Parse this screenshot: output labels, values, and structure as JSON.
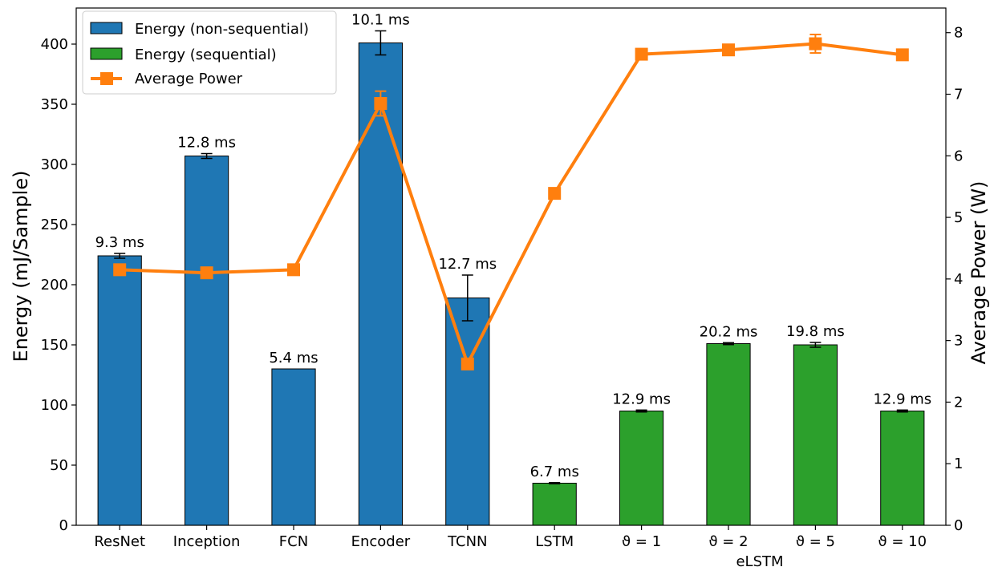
{
  "chart_data": {
    "type": "bar",
    "categories": [
      "ResNet",
      "Inception",
      "FCN",
      "Encoder",
      "TCNN",
      "LSTM",
      "ϑ = 1",
      "ϑ = 2",
      "ϑ = 5",
      "ϑ = 10"
    ],
    "category_group_label": "eLSTM",
    "series": [
      {
        "name": "Energy (non-sequential)",
        "kind": "bar",
        "axis": "left",
        "color": "#1f77b4",
        "values": [
          224,
          307,
          130,
          401,
          189,
          null,
          null,
          null,
          null,
          null
        ],
        "errors": [
          2,
          2,
          0,
          10,
          19,
          null,
          null,
          null,
          null,
          null
        ]
      },
      {
        "name": "Energy (sequential)",
        "kind": "bar",
        "axis": "left",
        "color": "#2ca02c",
        "values": [
          null,
          null,
          null,
          null,
          null,
          35,
          95,
          151,
          150,
          95
        ],
        "errors": [
          null,
          null,
          null,
          null,
          null,
          0.5,
          0.8,
          0.8,
          2,
          0.8
        ]
      },
      {
        "name": "Average Power",
        "kind": "line",
        "axis": "right",
        "color": "#ff7f0e",
        "values": [
          4.15,
          4.1,
          4.15,
          6.85,
          2.62,
          5.39,
          7.65,
          7.72,
          7.82,
          7.64
        ],
        "errors": [
          0,
          0,
          0,
          0.2,
          0,
          0,
          0,
          0,
          0.15,
          0
        ]
      }
    ],
    "bar_labels": [
      "9.3 ms",
      "12.8 ms",
      "5.4 ms",
      "10.1 ms",
      "12.7 ms",
      "6.7 ms",
      "12.9 ms",
      "20.2 ms",
      "19.8 ms",
      "12.9 ms"
    ],
    "ylabel": "Energy (mJ/Sample)",
    "y2label": "Average Power (W)",
    "ylim": [
      0,
      430
    ],
    "y2lim": [
      0,
      8.4
    ],
    "yticks": [
      0,
      50,
      100,
      150,
      200,
      250,
      300,
      350,
      400
    ],
    "y2ticks": [
      0,
      1,
      2,
      3,
      4,
      5,
      6,
      7,
      8
    ],
    "legend_position": "top-left",
    "grid": false
  }
}
